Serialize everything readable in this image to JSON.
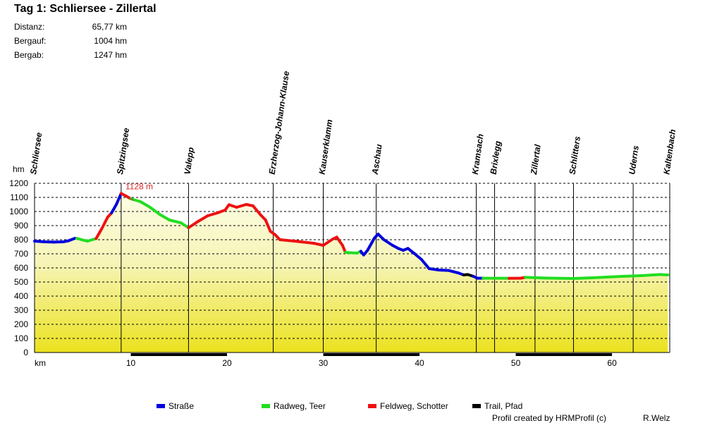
{
  "title": "Tag 1: Schliersee - Zillertal",
  "stats": [
    {
      "label": "Distanz:",
      "value": "65,77 km"
    },
    {
      "label": "Bergauf:",
      "value": "1004 hm"
    },
    {
      "label": "Bergab:",
      "value": "1247 hm"
    }
  ],
  "chart_data": {
    "type": "area",
    "ylabel": "hm",
    "xlabel": "km",
    "xlim": [
      0,
      66
    ],
    "ylim": [
      0,
      1200
    ],
    "x_ticks": [
      10,
      20,
      30,
      40,
      50,
      60
    ],
    "y_ticks": [
      0,
      100,
      200,
      300,
      400,
      500,
      600,
      700,
      800,
      900,
      1000,
      1100,
      1200
    ],
    "grid": true,
    "max_label": "1128 m",
    "max_point": {
      "x": 9.0,
      "y": 1128
    },
    "places": [
      {
        "name": "Schliersee",
        "km": 0.0
      },
      {
        "name": "Spitzingsee",
        "km": 9.0
      },
      {
        "name": "Valepp",
        "km": 16.0
      },
      {
        "name": "Erzherzog-Johann-Klause",
        "km": 24.8
      },
      {
        "name": "Kauserklamm",
        "km": 30.0
      },
      {
        "name": "Aschau",
        "km": 35.5
      },
      {
        "name": "Kramsach",
        "km": 45.9
      },
      {
        "name": "Brixlegg",
        "km": 47.8
      },
      {
        "name": "Zillertal",
        "km": 52.0
      },
      {
        "name": "Schlitters",
        "km": 56.0
      },
      {
        "name": "Uderns",
        "km": 62.2
      },
      {
        "name": "Kaltenbach",
        "km": 65.8
      }
    ],
    "series": [
      {
        "name": "Straße",
        "color": "#0000dd"
      },
      {
        "name": "Radweg, Teer",
        "color": "#22dd22"
      },
      {
        "name": "Feldweg, Schotter",
        "color": "#ee1111"
      },
      {
        "name": "Trail, Pfad",
        "color": "#000000"
      }
    ],
    "profile": [
      [
        0.0,
        790,
        0
      ],
      [
        1.0,
        785,
        0
      ],
      [
        2.0,
        783,
        0
      ],
      [
        3.0,
        785,
        0
      ],
      [
        3.5,
        792,
        0
      ],
      [
        4.2,
        810,
        0
      ],
      [
        4.4,
        810,
        1
      ],
      [
        5.0,
        798,
        1
      ],
      [
        5.5,
        790,
        1
      ],
      [
        6.0,
        800,
        1
      ],
      [
        6.4,
        808,
        1
      ],
      [
        6.4,
        808,
        2
      ],
      [
        7.0,
        880,
        2
      ],
      [
        7.6,
        960,
        2
      ],
      [
        8.0,
        990,
        2
      ],
      [
        8.0,
        990,
        0
      ],
      [
        8.5,
        1050,
        0
      ],
      [
        9.0,
        1128,
        0
      ],
      [
        9.0,
        1128,
        2
      ],
      [
        9.5,
        1110,
        2
      ],
      [
        10.0,
        1090,
        2
      ],
      [
        10.0,
        1090,
        1
      ],
      [
        11.0,
        1070,
        1
      ],
      [
        12.0,
        1030,
        1
      ],
      [
        13.0,
        980,
        1
      ],
      [
        14.0,
        940,
        1
      ],
      [
        15.2,
        920,
        1
      ],
      [
        16.0,
        885,
        1
      ],
      [
        16.0,
        885,
        2
      ],
      [
        17.0,
        930,
        2
      ],
      [
        18.0,
        970,
        2
      ],
      [
        19.0,
        990,
        2
      ],
      [
        19.8,
        1010,
        2
      ],
      [
        20.2,
        1048,
        2
      ],
      [
        21.0,
        1030,
        2
      ],
      [
        22.0,
        1050,
        2
      ],
      [
        22.7,
        1040,
        2
      ],
      [
        23.5,
        975,
        2
      ],
      [
        24.0,
        940,
        2
      ],
      [
        24.5,
        860,
        2
      ],
      [
        25.0,
        835,
        2
      ],
      [
        25.5,
        800,
        2
      ],
      [
        27.0,
        790,
        2
      ],
      [
        29.0,
        775,
        2
      ],
      [
        30.0,
        760,
        2
      ],
      [
        31.0,
        805,
        2
      ],
      [
        31.4,
        818,
        2
      ],
      [
        32.0,
        760,
        2
      ],
      [
        32.3,
        710,
        2
      ],
      [
        32.3,
        710,
        1
      ],
      [
        33.5,
        705,
        1
      ],
      [
        33.9,
        718,
        1
      ],
      [
        33.9,
        718,
        0
      ],
      [
        34.2,
        692,
        0
      ],
      [
        34.6,
        725,
        0
      ],
      [
        35.3,
        810,
        0
      ],
      [
        35.7,
        840,
        0
      ],
      [
        36.3,
        800,
        0
      ],
      [
        37.2,
        760,
        0
      ],
      [
        37.8,
        738,
        0
      ],
      [
        38.3,
        725,
        0
      ],
      [
        38.8,
        738,
        0
      ],
      [
        39.5,
        700,
        0
      ],
      [
        40.2,
        660,
        0
      ],
      [
        41.0,
        595,
        0
      ],
      [
        42.0,
        585,
        0
      ],
      [
        43.0,
        582,
        0
      ],
      [
        44.0,
        565,
        0
      ],
      [
        44.6,
        550,
        0
      ],
      [
        44.6,
        550,
        3
      ],
      [
        45.0,
        553,
        3
      ],
      [
        45.6,
        540,
        3
      ],
      [
        45.6,
        540,
        0
      ],
      [
        46.0,
        527,
        0
      ],
      [
        46.6,
        527,
        0
      ],
      [
        46.6,
        527,
        1
      ],
      [
        48.0,
        527,
        1
      ],
      [
        49.3,
        526,
        1
      ],
      [
        49.3,
        526,
        2
      ],
      [
        50.5,
        527,
        2
      ],
      [
        51.0,
        533,
        2
      ],
      [
        51.0,
        533,
        1
      ],
      [
        53.0,
        528,
        1
      ],
      [
        56.0,
        525,
        1
      ],
      [
        58.0,
        530,
        1
      ],
      [
        61.0,
        540,
        1
      ],
      [
        63.0,
        545,
        1
      ],
      [
        65.0,
        553,
        1
      ],
      [
        65.8,
        550,
        1
      ]
    ]
  },
  "footer": {
    "credit": "Profil created by HRMProfil (c)",
    "author": "R.Welz"
  }
}
